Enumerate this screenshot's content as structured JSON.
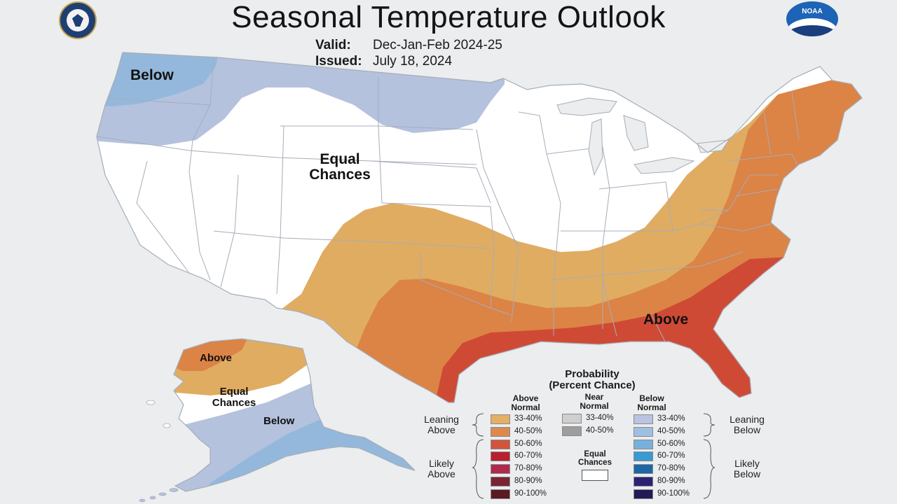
{
  "header": {
    "title": "Seasonal Temperature Outlook",
    "valid_label": "Valid:",
    "valid_value": "Dec-Jan-Feb 2024-25",
    "issued_label": "Issued:",
    "issued_value": "July 18, 2024"
  },
  "logos": {
    "left": "department-of-commerce-seal",
    "right": "noaa-logo",
    "noaa_text": "NOAA"
  },
  "map_labels": {
    "conus_below": "Below",
    "conus_equal_line1": "Equal",
    "conus_equal_line2": "Chances",
    "conus_above": "Above",
    "ak_above": "Above",
    "ak_equal_line1": "Equal",
    "ak_equal_line2": "Chances",
    "ak_below": "Below"
  },
  "colors": {
    "background": "#ebedee",
    "land": "#ffffff",
    "border": "#a9b0ba",
    "above_33_40": "#e0ac62",
    "above_40_50": "#dc8346",
    "above_50_60": "#cf4a35",
    "below_33_40": "#b4c2de",
    "below_40_50": "#94b8db"
  },
  "legend": {
    "title_line1": "Probability",
    "title_line2": "(Percent Chance)",
    "above_head": [
      "Above",
      "Normal"
    ],
    "near_head": [
      "Near",
      "Normal"
    ],
    "below_head": [
      "Below",
      "Normal"
    ],
    "leaning_above": [
      "Leaning",
      "Above"
    ],
    "likely_above": [
      "Likely",
      "Above"
    ],
    "leaning_below": [
      "Leaning",
      "Below"
    ],
    "likely_below": [
      "Likely",
      "Below"
    ],
    "equal_chances": [
      "Equal",
      "Chances"
    ],
    "above": [
      {
        "label": "33-40%",
        "color": "#e3b064"
      },
      {
        "label": "40-50%",
        "color": "#dd8a4f"
      },
      {
        "label": "50-60%",
        "color": "#d0553c"
      },
      {
        "label": "60-70%",
        "color": "#b81f2f"
      },
      {
        "label": "70-80%",
        "color": "#b0294e"
      },
      {
        "label": "80-90%",
        "color": "#7a2434"
      },
      {
        "label": "90-100%",
        "color": "#5a1a22"
      }
    ],
    "near": [
      {
        "label": "33-40%",
        "color": "#cfcfcf"
      },
      {
        "label": "40-50%",
        "color": "#9e9e9e"
      }
    ],
    "below": [
      {
        "label": "33-40%",
        "color": "#b8c4e0"
      },
      {
        "label": "40-50%",
        "color": "#9ec0e2"
      },
      {
        "label": "50-60%",
        "color": "#78b0dc"
      },
      {
        "label": "60-70%",
        "color": "#3a9ad2"
      },
      {
        "label": "70-80%",
        "color": "#1e66a6"
      },
      {
        "label": "80-90%",
        "color": "#2b2273"
      },
      {
        "label": "90-100%",
        "color": "#201a55"
      }
    ]
  }
}
